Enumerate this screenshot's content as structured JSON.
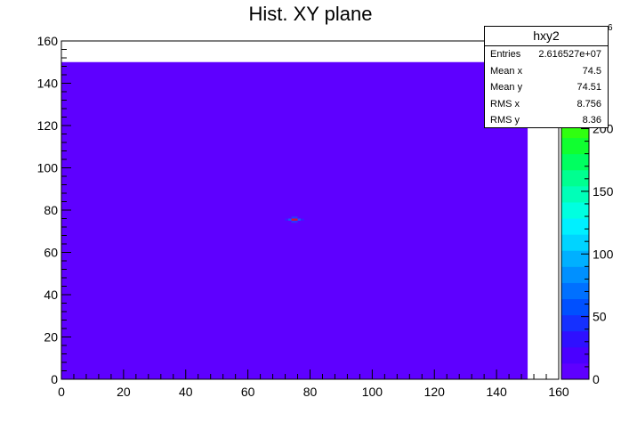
{
  "chart_data": {
    "type": "heatmap",
    "title": "Hist. XY plane",
    "xlabel": "",
    "ylabel": "",
    "xlim": [
      0,
      160
    ],
    "ylim": [
      0,
      160
    ],
    "x_ticks": [
      "0",
      "20",
      "40",
      "60",
      "80",
      "100",
      "120",
      "140",
      "160"
    ],
    "y_ticks": [
      "0",
      "20",
      "40",
      "60",
      "80",
      "100",
      "120",
      "140",
      "160"
    ],
    "filled_region": {
      "x": [
        0,
        150
      ],
      "y": [
        0,
        150
      ],
      "fill_color": "#5e00ff"
    },
    "hotspot": {
      "x_center": 75,
      "y_center": 75,
      "cells": [
        {
          "x": 74,
          "y": 75,
          "color": "#dd1133"
        },
        {
          "x": 75,
          "y": 75,
          "color": "#dd1133"
        },
        {
          "x": 73,
          "y": 75,
          "color": "#1a55ff"
        },
        {
          "x": 76,
          "y": 75,
          "color": "#1a55ff"
        },
        {
          "x": 74,
          "y": 76,
          "color": "#2a36ff"
        },
        {
          "x": 75,
          "y": 76,
          "color": "#2a36ff"
        },
        {
          "x": 74,
          "y": 74,
          "color": "#2a36ff"
        },
        {
          "x": 75,
          "y": 74,
          "color": "#2a36ff"
        },
        {
          "x": 72,
          "y": 75,
          "color": "#3b1cff"
        },
        {
          "x": 77,
          "y": 75,
          "color": "#3b1cff"
        }
      ]
    },
    "colorbar": {
      "ticks": [
        "0",
        "50",
        "100",
        "150",
        "200"
      ],
      "tick_values": [
        0,
        50,
        100,
        150,
        200
      ],
      "max": 270,
      "exponent": "6",
      "colors": [
        "#5e00ff",
        "#4a00ff",
        "#2f10ff",
        "#1530ff",
        "#0050ff",
        "#0070ff",
        "#0090ff",
        "#00b0ff",
        "#00d4ff",
        "#00f0ff",
        "#00ffe0",
        "#00ffb8",
        "#00ff90",
        "#00ff60",
        "#10ff30",
        "#30ff10",
        "#60ff00",
        "#90ff00",
        "#bbff00",
        "#ddff00",
        "#ffff00"
      ]
    },
    "stats": {
      "name": "hxy2",
      "rows": [
        {
          "label": "Entries",
          "value": "2.616527e+07"
        },
        {
          "label": "Mean x",
          "value": "74.5"
        },
        {
          "label": "Mean y",
          "value": "74.51"
        },
        {
          "label": "RMS x",
          "value": "8.756"
        },
        {
          "label": "RMS y",
          "value": "8.36"
        }
      ]
    }
  }
}
